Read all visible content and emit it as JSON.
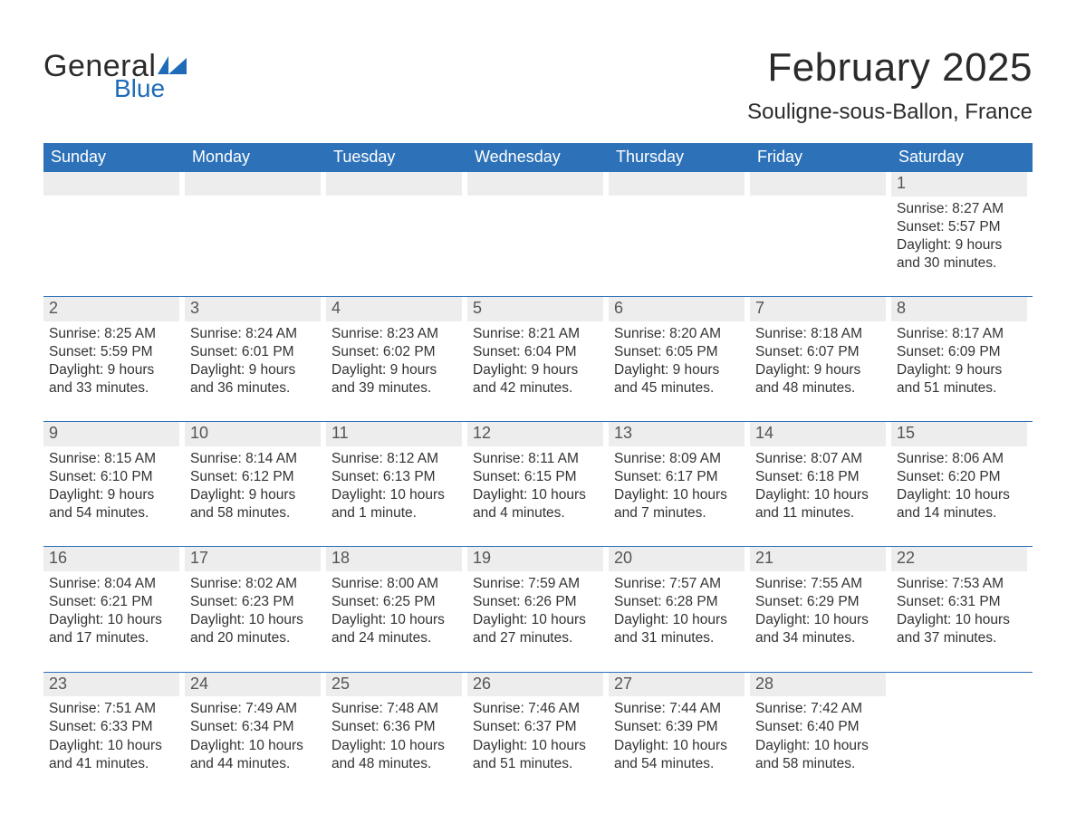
{
  "brand": {
    "word1": "General",
    "word2": "Blue",
    "accent": "#1f6bb7",
    "logo_shape_color": "#1f6bb7"
  },
  "title": "February 2025",
  "location": "Souligne-sous-Ballon, France",
  "header_bg": "#2d72b8",
  "row_sep_color": "#2d72b8",
  "daynum_bg": "#ededed",
  "text_color": "#333333",
  "dow": [
    "Sunday",
    "Monday",
    "Tuesday",
    "Wednesday",
    "Thursday",
    "Friday",
    "Saturday"
  ],
  "weeks": [
    [
      null,
      null,
      null,
      null,
      null,
      null,
      {
        "n": "1",
        "sunrise": "8:27 AM",
        "sunset": "5:57 PM",
        "daylight": "9 hours and 30 minutes."
      }
    ],
    [
      {
        "n": "2",
        "sunrise": "8:25 AM",
        "sunset": "5:59 PM",
        "daylight": "9 hours and 33 minutes."
      },
      {
        "n": "3",
        "sunrise": "8:24 AM",
        "sunset": "6:01 PM",
        "daylight": "9 hours and 36 minutes."
      },
      {
        "n": "4",
        "sunrise": "8:23 AM",
        "sunset": "6:02 PM",
        "daylight": "9 hours and 39 minutes."
      },
      {
        "n": "5",
        "sunrise": "8:21 AM",
        "sunset": "6:04 PM",
        "daylight": "9 hours and 42 minutes."
      },
      {
        "n": "6",
        "sunrise": "8:20 AM",
        "sunset": "6:05 PM",
        "daylight": "9 hours and 45 minutes."
      },
      {
        "n": "7",
        "sunrise": "8:18 AM",
        "sunset": "6:07 PM",
        "daylight": "9 hours and 48 minutes."
      },
      {
        "n": "8",
        "sunrise": "8:17 AM",
        "sunset": "6:09 PM",
        "daylight": "9 hours and 51 minutes."
      }
    ],
    [
      {
        "n": "9",
        "sunrise": "8:15 AM",
        "sunset": "6:10 PM",
        "daylight": "9 hours and 54 minutes."
      },
      {
        "n": "10",
        "sunrise": "8:14 AM",
        "sunset": "6:12 PM",
        "daylight": "9 hours and 58 minutes."
      },
      {
        "n": "11",
        "sunrise": "8:12 AM",
        "sunset": "6:13 PM",
        "daylight": "10 hours and 1 minute."
      },
      {
        "n": "12",
        "sunrise": "8:11 AM",
        "sunset": "6:15 PM",
        "daylight": "10 hours and 4 minutes."
      },
      {
        "n": "13",
        "sunrise": "8:09 AM",
        "sunset": "6:17 PM",
        "daylight": "10 hours and 7 minutes."
      },
      {
        "n": "14",
        "sunrise": "8:07 AM",
        "sunset": "6:18 PM",
        "daylight": "10 hours and 11 minutes."
      },
      {
        "n": "15",
        "sunrise": "8:06 AM",
        "sunset": "6:20 PM",
        "daylight": "10 hours and 14 minutes."
      }
    ],
    [
      {
        "n": "16",
        "sunrise": "8:04 AM",
        "sunset": "6:21 PM",
        "daylight": "10 hours and 17 minutes."
      },
      {
        "n": "17",
        "sunrise": "8:02 AM",
        "sunset": "6:23 PM",
        "daylight": "10 hours and 20 minutes."
      },
      {
        "n": "18",
        "sunrise": "8:00 AM",
        "sunset": "6:25 PM",
        "daylight": "10 hours and 24 minutes."
      },
      {
        "n": "19",
        "sunrise": "7:59 AM",
        "sunset": "6:26 PM",
        "daylight": "10 hours and 27 minutes."
      },
      {
        "n": "20",
        "sunrise": "7:57 AM",
        "sunset": "6:28 PM",
        "daylight": "10 hours and 31 minutes."
      },
      {
        "n": "21",
        "sunrise": "7:55 AM",
        "sunset": "6:29 PM",
        "daylight": "10 hours and 34 minutes."
      },
      {
        "n": "22",
        "sunrise": "7:53 AM",
        "sunset": "6:31 PM",
        "daylight": "10 hours and 37 minutes."
      }
    ],
    [
      {
        "n": "23",
        "sunrise": "7:51 AM",
        "sunset": "6:33 PM",
        "daylight": "10 hours and 41 minutes."
      },
      {
        "n": "24",
        "sunrise": "7:49 AM",
        "sunset": "6:34 PM",
        "daylight": "10 hours and 44 minutes."
      },
      {
        "n": "25",
        "sunrise": "7:48 AM",
        "sunset": "6:36 PM",
        "daylight": "10 hours and 48 minutes."
      },
      {
        "n": "26",
        "sunrise": "7:46 AM",
        "sunset": "6:37 PM",
        "daylight": "10 hours and 51 minutes."
      },
      {
        "n": "27",
        "sunrise": "7:44 AM",
        "sunset": "6:39 PM",
        "daylight": "10 hours and 54 minutes."
      },
      {
        "n": "28",
        "sunrise": "7:42 AM",
        "sunset": "6:40 PM",
        "daylight": "10 hours and 58 minutes."
      },
      null
    ]
  ],
  "labels": {
    "sunrise": "Sunrise: ",
    "sunset": "Sunset: ",
    "daylight": "Daylight: "
  }
}
